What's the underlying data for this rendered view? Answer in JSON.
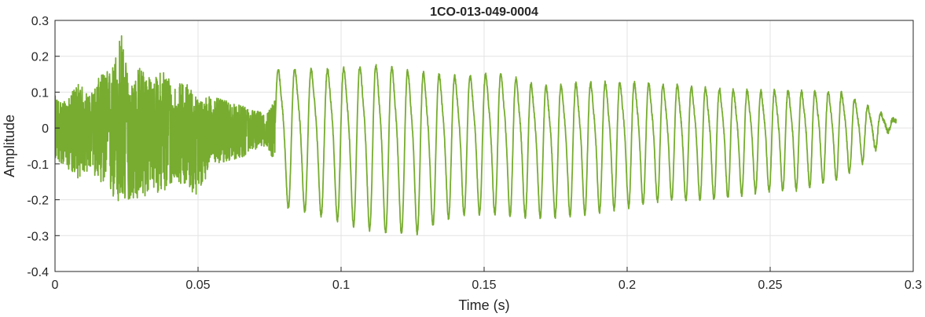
{
  "chart_data": {
    "type": "line",
    "title": "1CO-013-049-0004",
    "xlabel": "Time (s)",
    "ylabel": "Amplitude",
    "xlim": [
      0,
      0.3
    ],
    "ylim": [
      -0.4,
      0.3
    ],
    "xticks": [
      0,
      0.05,
      0.1,
      0.15,
      0.2,
      0.25,
      0.3
    ],
    "xtick_labels": [
      "0",
      "0.05",
      "0.1",
      "0.15",
      "0.2",
      "0.25",
      "0.3"
    ],
    "yticks": [
      -0.4,
      -0.3,
      -0.2,
      -0.1,
      0,
      0.1,
      0.2,
      0.3
    ],
    "ytick_labels": [
      "-0.4",
      "-0.3",
      "-0.2",
      "-0.1",
      "0",
      "0.1",
      "0.2",
      "0.3"
    ],
    "grid": true,
    "line_color": "#77AC30",
    "series": [
      {
        "noise_section": {
          "x_range": [
            0,
            0.077
          ],
          "peak_x": [
            0,
            0.004,
            0.008,
            0.012,
            0.016,
            0.02,
            0.023,
            0.026,
            0.03,
            0.034,
            0.038,
            0.042,
            0.046,
            0.05,
            0.054,
            0.058,
            0.062,
            0.066,
            0.07,
            0.074,
            0.077
          ],
          "upper_envelope": [
            0.09,
            0.07,
            0.13,
            0.09,
            0.15,
            0.17,
            0.28,
            0.12,
            0.18,
            0.13,
            0.17,
            0.12,
            0.13,
            0.08,
            0.09,
            0.08,
            0.07,
            0.06,
            0.05,
            0.04,
            0.08
          ],
          "lower_envelope": [
            -0.09,
            -0.11,
            -0.14,
            -0.12,
            -0.15,
            -0.2,
            -0.23,
            -0.2,
            -0.21,
            -0.17,
            -0.19,
            -0.15,
            -0.16,
            -0.2,
            -0.11,
            -0.1,
            -0.09,
            -0.08,
            -0.06,
            -0.05,
            -0.1
          ]
        },
        "oscillation_section": {
          "x_range": [
            0.077,
            0.294
          ],
          "peak_x": [
            0.081,
            0.092,
            0.103,
            0.114,
            0.125,
            0.14,
            0.155,
            0.17,
            0.185,
            0.2,
            0.215,
            0.23,
            0.245,
            0.26,
            0.275,
            0.285,
            0.294
          ],
          "peaks": [
            0.2,
            0.2,
            0.21,
            0.22,
            0.2,
            0.18,
            0.19,
            0.15,
            0.16,
            0.16,
            0.15,
            0.14,
            0.13,
            0.13,
            0.12,
            0.07,
            0.02
          ],
          "troughs": [
            -0.22,
            -0.24,
            -0.27,
            -0.29,
            -0.3,
            -0.24,
            -0.24,
            -0.25,
            -0.24,
            -0.22,
            -0.2,
            -0.2,
            -0.18,
            -0.17,
            -0.14,
            -0.08,
            0.02
          ]
        }
      }
    ]
  }
}
